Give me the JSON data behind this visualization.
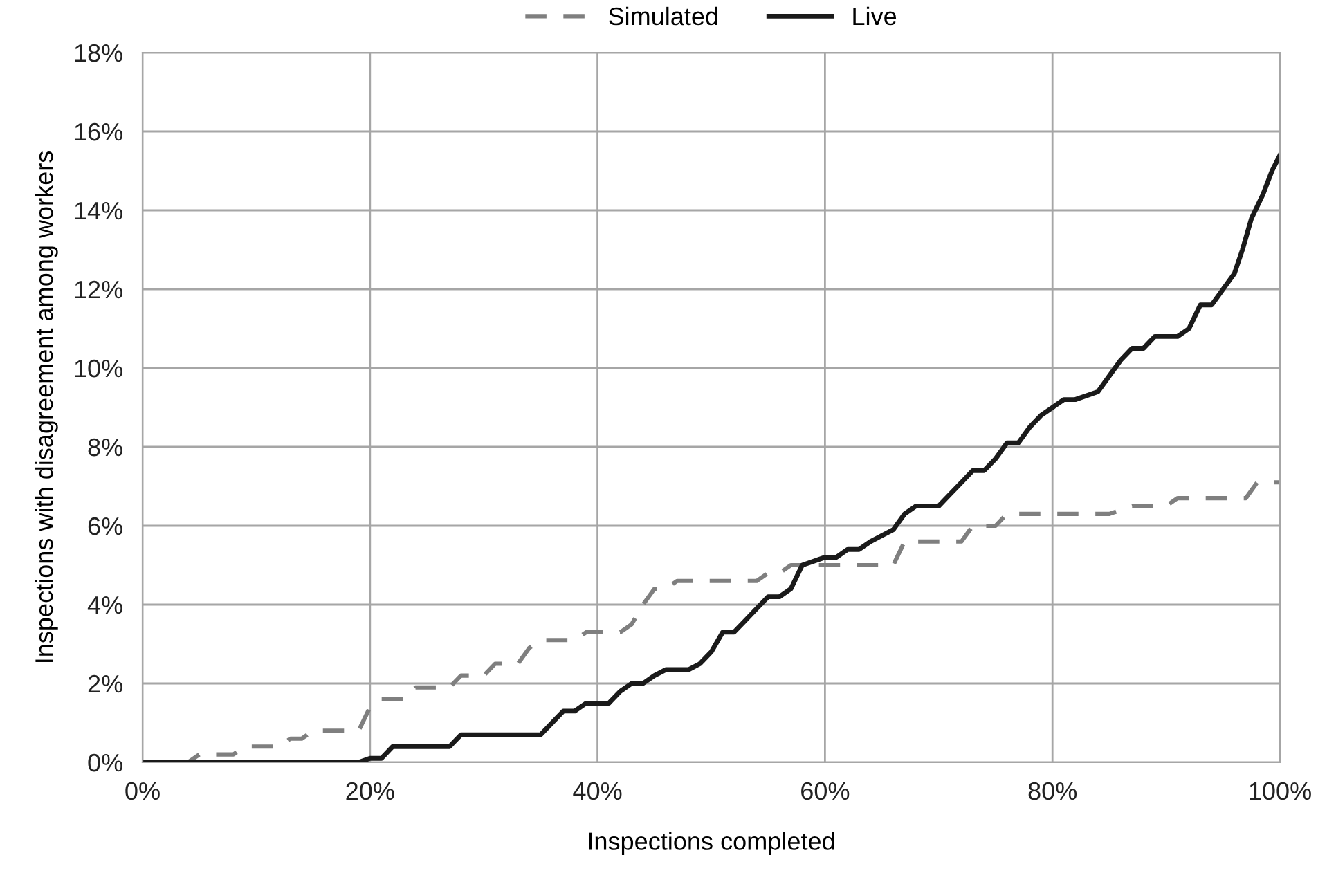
{
  "chart_data": {
    "type": "line",
    "xlabel": "Inspections completed",
    "ylabel": "Inspections with disagreement among workers",
    "xlim": [
      0,
      100
    ],
    "ylim": [
      0,
      18
    ],
    "xticks": [
      {
        "value": 0,
        "label": "0%"
      },
      {
        "value": 20,
        "label": "20%"
      },
      {
        "value": 40,
        "label": "40%"
      },
      {
        "value": 60,
        "label": "60%"
      },
      {
        "value": 80,
        "label": "80%"
      },
      {
        "value": 100,
        "label": "100%"
      }
    ],
    "yticks": [
      {
        "value": 0,
        "label": "0%"
      },
      {
        "value": 2,
        "label": "2%"
      },
      {
        "value": 4,
        "label": "4%"
      },
      {
        "value": 6,
        "label": "6%"
      },
      {
        "value": 8,
        "label": "8%"
      },
      {
        "value": 10,
        "label": "10%"
      },
      {
        "value": 12,
        "label": "12%"
      },
      {
        "value": 14,
        "label": "14%"
      },
      {
        "value": 16,
        "label": "16%"
      },
      {
        "value": 18,
        "label": "18%"
      }
    ],
    "grid": true,
    "legend": "top",
    "series": [
      {
        "name": "Simulated",
        "color": "#7f7f7f",
        "line_style": "dashed",
        "x": [
          0,
          4,
          5,
          8,
          9,
          12,
          13,
          14,
          15,
          19,
          20,
          21,
          23,
          24,
          27,
          28,
          30,
          31,
          33,
          34,
          35,
          38,
          39,
          42,
          43,
          44,
          45,
          46,
          47,
          54,
          55,
          56,
          57,
          66,
          67,
          72,
          73,
          75,
          76,
          85,
          87,
          90,
          91,
          97,
          98,
          100
        ],
        "values": [
          0,
          0,
          0.2,
          0.2,
          0.4,
          0.4,
          0.6,
          0.6,
          0.8,
          0.8,
          1.4,
          1.6,
          1.6,
          1.9,
          1.9,
          2.2,
          2.2,
          2.5,
          2.5,
          2.9,
          3.1,
          3.1,
          3.3,
          3.3,
          3.5,
          4.0,
          4.4,
          4.4,
          4.6,
          4.6,
          4.8,
          4.8,
          5.0,
          5.0,
          5.6,
          5.6,
          6.0,
          6.0,
          6.3,
          6.3,
          6.5,
          6.5,
          6.7,
          6.7,
          7.1,
          7.1
        ]
      },
      {
        "name": "Live",
        "color": "#1a1a1a",
        "line_style": "solid",
        "x": [
          0,
          19,
          20,
          21,
          22,
          27,
          28,
          35,
          36,
          37,
          38,
          39,
          41,
          42,
          43,
          44,
          45,
          46,
          48,
          49,
          50,
          51,
          52,
          53,
          54,
          55,
          56,
          57,
          58,
          60,
          61,
          62,
          63,
          64,
          66,
          67,
          68,
          70,
          71,
          72,
          73,
          74,
          75,
          76,
          77,
          78,
          79,
          81,
          82,
          84,
          85,
          86,
          87,
          88,
          89,
          91,
          92,
          93,
          94,
          95,
          96,
          96.7,
          97.5,
          98.5,
          99.3,
          100
        ],
        "values": [
          0,
          0,
          0.1,
          0.1,
          0.4,
          0.4,
          0.7,
          0.7,
          1.0,
          1.3,
          1.3,
          1.5,
          1.5,
          1.8,
          2.0,
          2.0,
          2.2,
          2.35,
          2.35,
          2.5,
          2.8,
          3.3,
          3.3,
          3.6,
          3.9,
          4.2,
          4.2,
          4.4,
          5.0,
          5.2,
          5.2,
          5.4,
          5.4,
          5.6,
          5.9,
          6.3,
          6.5,
          6.5,
          6.8,
          7.1,
          7.4,
          7.4,
          7.7,
          8.1,
          8.1,
          8.5,
          8.8,
          9.2,
          9.2,
          9.4,
          9.8,
          10.2,
          10.5,
          10.5,
          10.8,
          10.8,
          11.0,
          11.6,
          11.6,
          12.0,
          12.4,
          13.0,
          13.8,
          14.4,
          15.0,
          15.4
        ]
      }
    ]
  }
}
